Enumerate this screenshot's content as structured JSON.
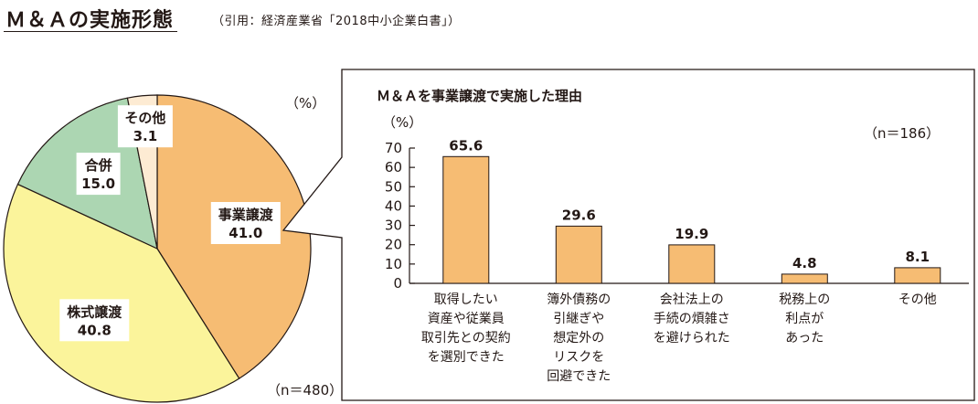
{
  "header": {
    "title": "Ｍ＆Ａの実施形態",
    "source": "（引用：経済産業省「2018中小企業白書」）"
  },
  "colors": {
    "slice_jigyo": "#f6bc73",
    "slice_kabushiki": "#fbf49b",
    "slice_gappei": "#acd6b2",
    "slice_sonota": "#fdebd3",
    "bar_fill": "#f6bc73",
    "stroke": "#231815"
  },
  "chart_data": [
    {
      "type": "pie",
      "unit_label": "（%）",
      "n_label": "（n＝480）",
      "slices": [
        {
          "label": "事業譲渡",
          "value": 41.0,
          "value_text": "41.0"
        },
        {
          "label": "株式譲渡",
          "value": 40.8,
          "value_text": "40.8"
        },
        {
          "label": "合併",
          "value": 15.0,
          "value_text": "15.0"
        },
        {
          "label": "その他",
          "value": 3.1,
          "value_text": "3.1"
        }
      ]
    },
    {
      "type": "bar",
      "title": "Ｍ＆Ａを事業譲渡で実施した理由",
      "ylabel": "（%）",
      "n_label": "（n＝186）",
      "ylim": [
        0,
        70
      ],
      "yticks": [
        0,
        10,
        20,
        30,
        40,
        50,
        60,
        70
      ],
      "categories": [
        [
          "取得したい",
          "資産や従業員",
          "取引先との契約",
          "を選別できた"
        ],
        [
          "簿外債務の",
          "引継ぎや",
          "想定外の",
          "リスクを",
          "回避できた"
        ],
        [
          "会社法上の",
          "手続の煩雑さ",
          "を避けられた"
        ],
        [
          "税務上の",
          "利点が",
          "あった"
        ],
        [
          "その他"
        ]
      ],
      "values": [
        65.6,
        29.6,
        19.9,
        4.8,
        8.1
      ],
      "value_labels": [
        "65.6",
        "29.6",
        "19.9",
        "4.8",
        "8.1"
      ]
    }
  ]
}
